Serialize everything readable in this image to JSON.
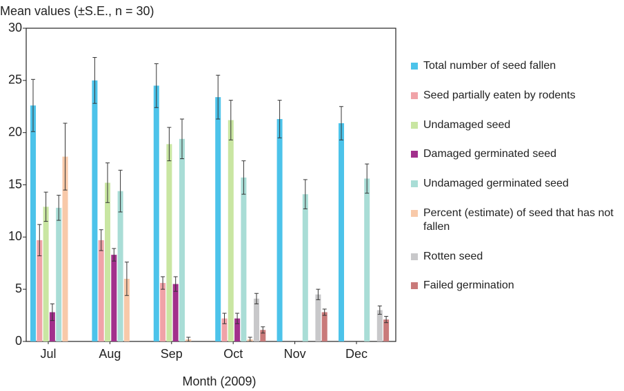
{
  "chart_data": {
    "type": "bar",
    "ylabel": "Mean values (±S.E., n = 30)",
    "xlabel": "Month (2009)",
    "categories": [
      "Jul",
      "Aug",
      "Sep",
      "Oct",
      "Nov",
      "Dec"
    ],
    "ylim": [
      0,
      30
    ],
    "yticks": [
      0,
      5,
      10,
      15,
      20,
      25,
      30
    ],
    "grid": false,
    "legend": "right",
    "series": [
      {
        "name": "Total number of seed fallen",
        "color": "#4cc3ea",
        "values": [
          22.6,
          25.0,
          24.5,
          23.4,
          21.3,
          20.9
        ],
        "errors": [
          2.5,
          2.2,
          2.1,
          2.1,
          1.8,
          1.6
        ]
      },
      {
        "name": "Seed partially eaten by rodents",
        "color": "#f0a3a8",
        "values": [
          9.7,
          9.7,
          5.6,
          2.2,
          null,
          null
        ],
        "errors": [
          1.5,
          1.0,
          0.6,
          0.5,
          null,
          null
        ]
      },
      {
        "name": "Undamaged seed",
        "color": "#c9e6a2",
        "values": [
          12.9,
          15.2,
          18.9,
          21.2,
          null,
          null
        ],
        "errors": [
          1.4,
          1.9,
          1.6,
          1.9,
          null,
          null
        ]
      },
      {
        "name": "Damaged germinated seed",
        "color": "#a2308c",
        "values": [
          2.8,
          8.3,
          5.5,
          2.2,
          null,
          null
        ],
        "errors": [
          0.8,
          0.6,
          0.7,
          0.5,
          null,
          null
        ]
      },
      {
        "name": "Undamaged germinated seed",
        "color": "#a9ddd6",
        "values": [
          12.8,
          14.4,
          19.4,
          15.7,
          14.1,
          15.6
        ],
        "errors": [
          1.2,
          2.0,
          1.9,
          1.6,
          1.4,
          1.4
        ]
      },
      {
        "name": "Percent (estimate) of seed that has not fallen",
        "color": "#f8c9a9",
        "values": [
          17.7,
          6.0,
          0.2,
          0.2,
          null,
          null
        ],
        "errors": [
          3.2,
          1.6,
          0.2,
          0.2,
          null,
          null
        ]
      },
      {
        "name": "Rotten seed",
        "color": "#c8c8ca",
        "values": [
          null,
          null,
          null,
          4.1,
          4.5,
          3.0
        ],
        "errors": [
          null,
          null,
          null,
          0.5,
          0.5,
          0.4
        ]
      },
      {
        "name": "Failed germination",
        "color": "#c97a7a",
        "values": [
          null,
          null,
          null,
          1.1,
          2.8,
          2.1
        ],
        "errors": [
          null,
          null,
          null,
          0.3,
          0.3,
          0.3
        ]
      }
    ]
  }
}
